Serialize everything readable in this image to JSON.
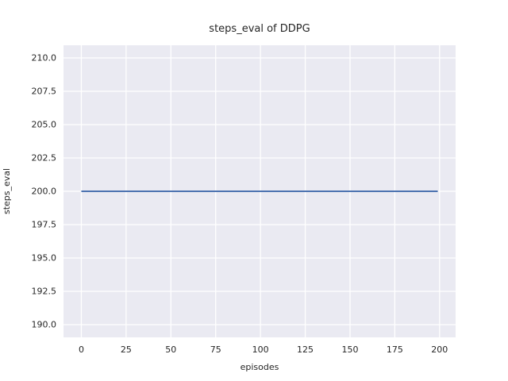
{
  "chart_data": {
    "type": "line",
    "title": "steps_eval of DDPG",
    "xlabel": "episodes",
    "ylabel": "steps_eval",
    "x_ticks": [
      0,
      25,
      50,
      75,
      100,
      125,
      150,
      175,
      200
    ],
    "x_tick_labels": [
      "0",
      "25",
      "50",
      "75",
      "100",
      "125",
      "150",
      "175",
      "200"
    ],
    "y_ticks": [
      190.0,
      192.5,
      195.0,
      197.5,
      200.0,
      202.5,
      205.0,
      207.5,
      210.0
    ],
    "y_tick_labels": [
      "190.0",
      "192.5",
      "195.0",
      "197.5",
      "200.0",
      "202.5",
      "205.0",
      "207.5",
      "210.0"
    ],
    "xlim": [
      -9.95,
      208.95
    ],
    "ylim": [
      189.05,
      210.95
    ],
    "grid": true,
    "legend": "none",
    "series": [
      {
        "name": "steps_eval of DDPG",
        "x": [
          0,
          199
        ],
        "y": [
          200.0,
          200.0
        ],
        "color": "#4c72b0",
        "line_width": 2
      }
    ],
    "colors": {
      "figure_bg": "#ffffff",
      "plot_bg": "#eaeaf2",
      "grid": "#ffffff",
      "text": "#262626"
    }
  }
}
